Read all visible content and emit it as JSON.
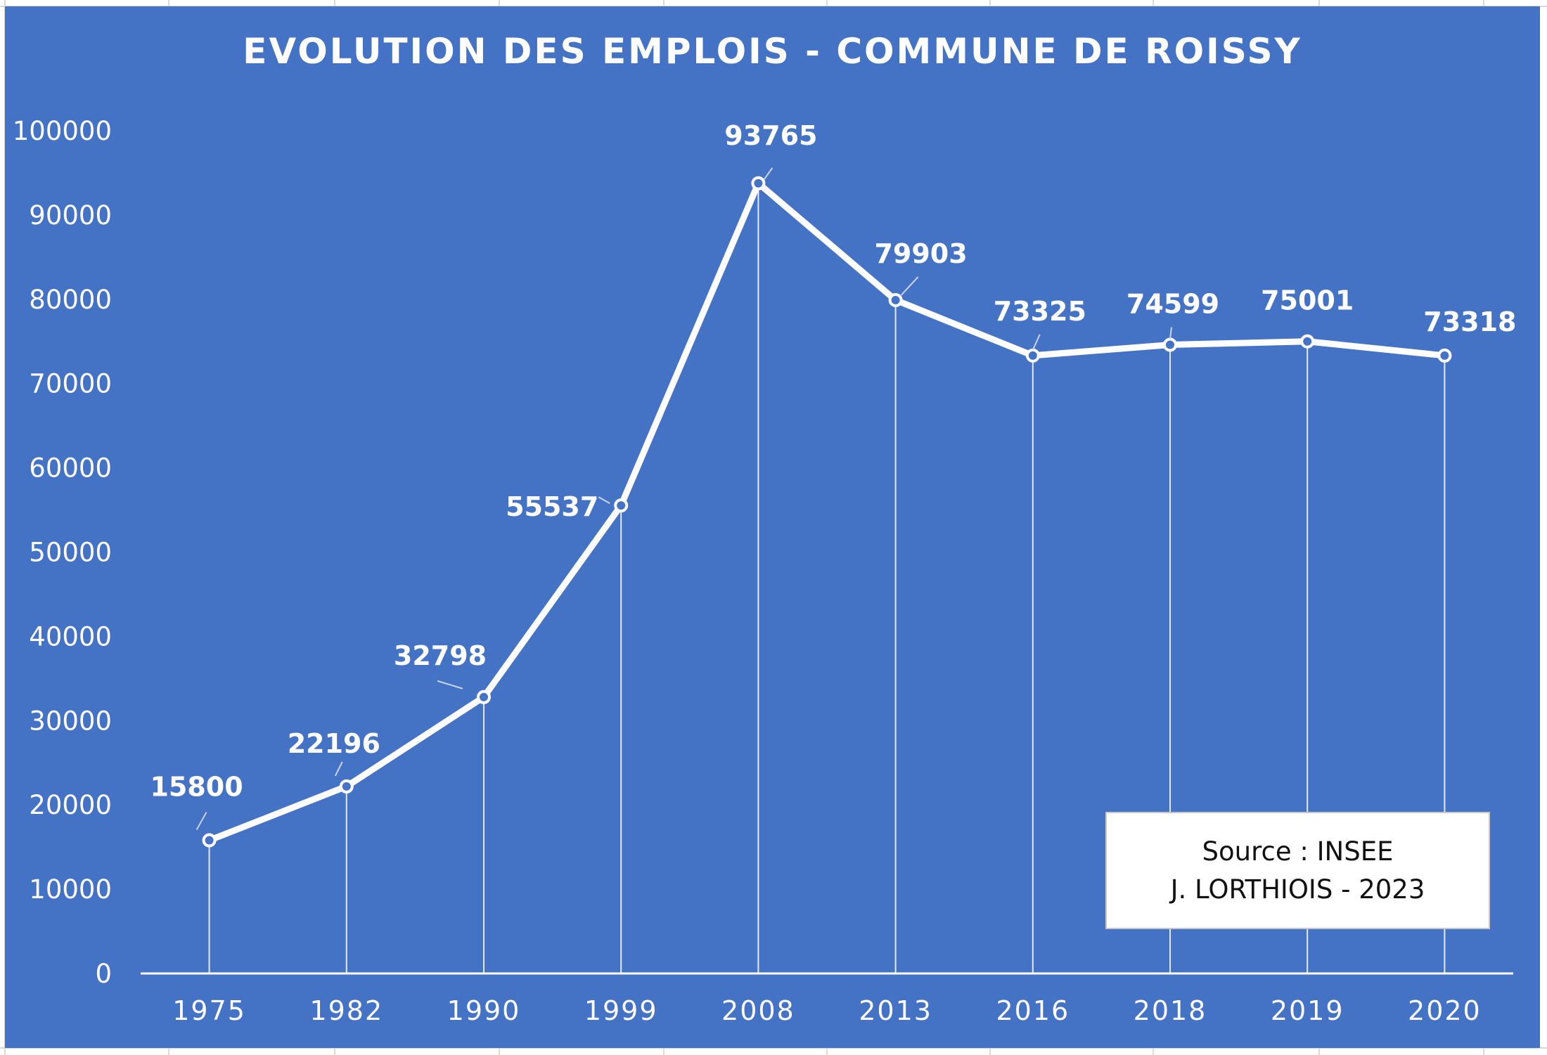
{
  "chart_data": {
    "type": "line",
    "title": "EVOLUTION DES EMPLOIS - COMMUNE DE ROISSY",
    "categories": [
      "1975",
      "1982",
      "1990",
      "1999",
      "2008",
      "2013",
      "2016",
      "2018",
      "2019",
      "2020"
    ],
    "series": [
      {
        "values": [
          15800,
          22196,
          32798,
          55537,
          93765,
          79903,
          73325,
          74599,
          75001,
          73318
        ]
      }
    ],
    "data_labels": [
      "15800",
      "22196",
      "32798",
      "55537",
      "93765",
      "79903",
      "73325",
      "74599",
      "75001",
      "73318"
    ],
    "ylim": [
      0,
      100000
    ],
    "yticks": [
      "0",
      "10000",
      "20000",
      "30000",
      "40000",
      "50000",
      "60000",
      "70000",
      "80000",
      "90000",
      "100000"
    ],
    "drop_lines": true,
    "grid": false,
    "legend": "none",
    "colors": {
      "background": "#4472c4",
      "line": "#ffffff",
      "text": "#ffffff"
    }
  },
  "source_box": {
    "line1": "Source : INSEE",
    "line2": "J. LORTHIOIS - 2023"
  }
}
